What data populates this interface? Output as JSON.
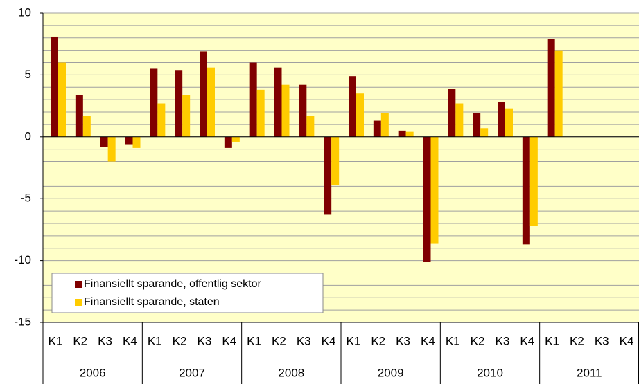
{
  "chart_data": {
    "type": "bar",
    "categories": [
      "K1",
      "K2",
      "K3",
      "K4",
      "K1",
      "K2",
      "K3",
      "K4",
      "K1",
      "K2",
      "K3",
      "K4",
      "K1",
      "K2",
      "K3",
      "K4",
      "K1",
      "K2",
      "K3",
      "K4",
      "K1",
      "K2",
      "K3",
      "K4"
    ],
    "groups": [
      "2006",
      "2007",
      "2008",
      "2009",
      "2010",
      "2011"
    ],
    "series": [
      {
        "name": "Finansiellt sparande, offentlig sektor",
        "color": "#800000",
        "values": [
          8.1,
          3.4,
          -0.8,
          -0.6,
          5.5,
          5.4,
          6.9,
          -0.9,
          6.0,
          5.6,
          4.2,
          -6.3,
          4.9,
          1.3,
          0.5,
          -10.1,
          3.9,
          1.9,
          2.8,
          -8.7,
          7.9,
          null,
          null,
          null
        ]
      },
      {
        "name": "Finansiellt sparande, staten",
        "color": "#ffcc00",
        "values": [
          6.0,
          1.7,
          -2.0,
          -0.9,
          2.7,
          3.4,
          5.6,
          -0.4,
          3.8,
          4.2,
          1.7,
          -3.9,
          3.5,
          1.9,
          0.4,
          -8.6,
          2.7,
          0.7,
          2.3,
          -7.2,
          7.0,
          null,
          null,
          null
        ]
      }
    ],
    "ylim": [
      -15,
      10
    ],
    "yticks": [
      -15,
      -10,
      -5,
      0,
      5,
      10
    ],
    "minor_yticks": [
      -14,
      -13,
      -12,
      -11,
      -9,
      -8,
      -7,
      -6,
      -4,
      -3,
      -2,
      -1,
      1,
      2,
      3,
      4,
      6,
      7,
      8,
      9
    ],
    "grid": true,
    "background": "#ffffc8",
    "legend": "lower left"
  }
}
